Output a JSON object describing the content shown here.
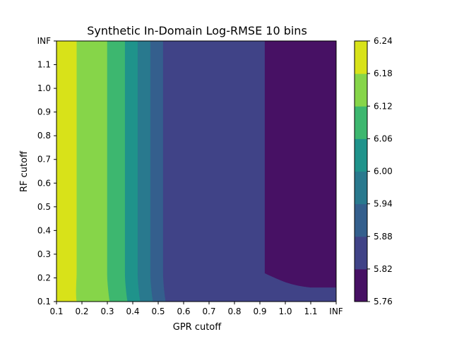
{
  "chart_data": {
    "type": "heatmap",
    "subtype": "filled-contour",
    "title": "Synthetic In-Domain Log-RMSE 10 bins",
    "xlabel": "GPR cutoff",
    "ylabel": "RF cutoff",
    "x_ticks": [
      "0.1",
      "0.2",
      "0.3",
      "0.4",
      "0.5",
      "0.6",
      "0.7",
      "0.8",
      "0.9",
      "1.0",
      "1.1",
      "INF"
    ],
    "y_ticks": [
      "0.1",
      "0.2",
      "0.3",
      "0.4",
      "0.5",
      "0.6",
      "0.7",
      "0.8",
      "0.9",
      "1.0",
      "1.1",
      "INF"
    ],
    "colorbar": {
      "ticks": [
        "5.76",
        "5.82",
        "5.88",
        "5.94",
        "6.00",
        "6.06",
        "6.12",
        "6.18",
        "6.24"
      ],
      "levels": [
        5.76,
        5.82,
        5.88,
        5.94,
        6.0,
        6.06,
        6.12,
        6.18,
        6.24
      ],
      "colors": [
        "#471164",
        "#404387",
        "#345f8d",
        "#29798e",
        "#1f938b",
        "#3db76f",
        "#86d549",
        "#d8e219"
      ]
    },
    "regions": [
      {
        "range": "6.18-6.24",
        "color": "#d8e219",
        "x_to_top": 0.18,
        "x_to_bottom": 0.18
      },
      {
        "range": "6.12-6.18",
        "color": "#86d549",
        "x_to_top": 0.3,
        "x_to_bottom": 0.31
      },
      {
        "range": "6.06-6.12",
        "color": "#3db76f",
        "x_to_top": 0.37,
        "x_to_bottom": 0.38
      },
      {
        "range": "6.00-6.06",
        "color": "#1f938b",
        "x_to_top": 0.42,
        "x_to_bottom": 0.43
      },
      {
        "range": "5.94-6.00",
        "color": "#29798e",
        "x_to_top": 0.47,
        "x_to_bottom": 0.48
      },
      {
        "range": "5.88-5.94",
        "color": "#345f8d",
        "x_to_top": 0.52,
        "x_to_bottom": 0.53
      },
      {
        "range": "5.82-5.88",
        "color": "#404387",
        "x_to_top": 0.92,
        "x_to_bottom": 1.2
      },
      {
        "range": "5.76-5.82",
        "color": "#471164",
        "x_to_top": 1.2,
        "x_to_bottom": 1.2
      }
    ],
    "grid": false
  }
}
